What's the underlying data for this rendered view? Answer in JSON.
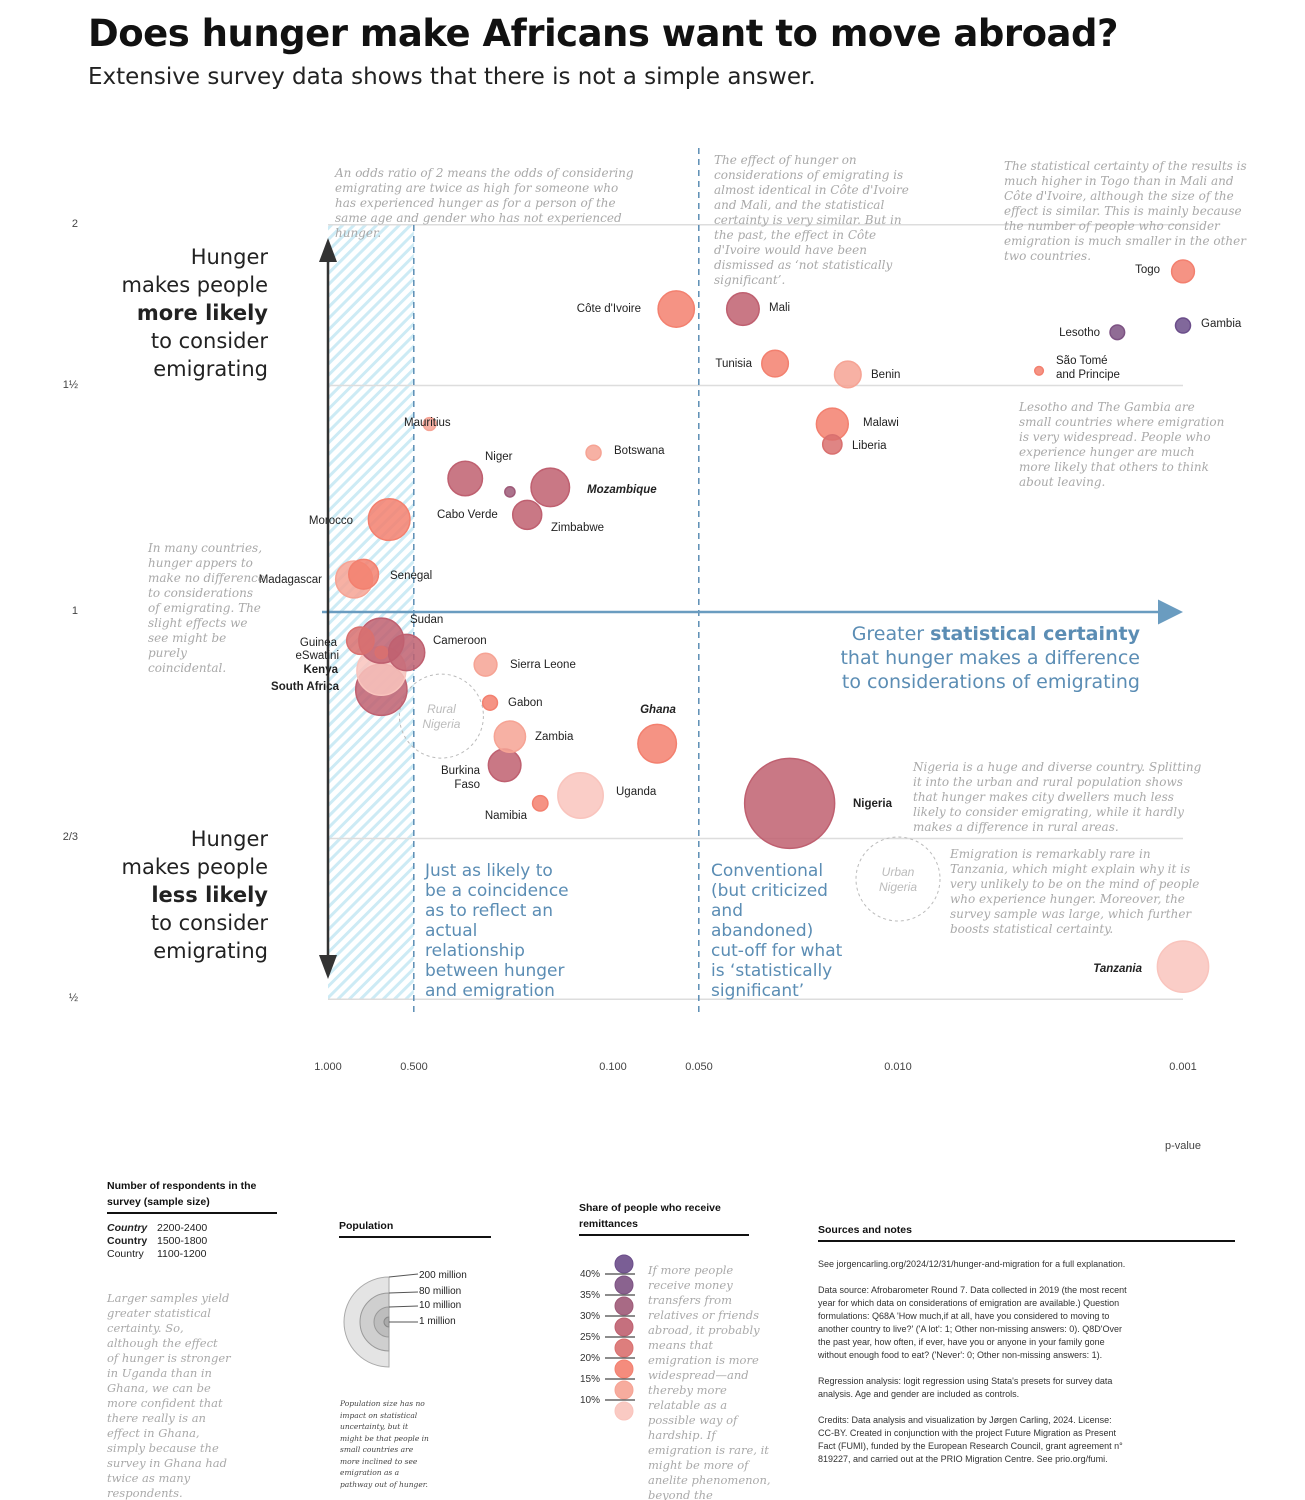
{
  "title": "Does hunger make Africans want to move abroad?",
  "subtitle": "Extensive survey data shows that there is not a simple answer.",
  "chart_data": {
    "type": "scatter",
    "xlabel": "p-value",
    "x_scale": "log",
    "x_reversed": true,
    "xlim": [
      1.0,
      0.001
    ],
    "x_ticks": [
      "1.000",
      "0.500",
      "0.100",
      "0.050",
      "0.010",
      "0.001"
    ],
    "y_scale": "log",
    "ylim": [
      0.5,
      2
    ],
    "y_ticks": [
      "2",
      "1½",
      "1",
      "2/3",
      "½"
    ],
    "size_variable": "Population (million)",
    "color_variable": "Share of people who receive remittances (%)",
    "color_scale": [
      "#f9c4bd",
      "#f6a394",
      "#f3806f",
      "#d9706f",
      "#bf6070",
      "#9e5a78",
      "#7d5283",
      "#6b4d8a"
    ],
    "points": [
      {
        "country": "Togo",
        "p": 0.001,
        "odds_ratio": 1.84,
        "population": 8,
        "remittances": 18,
        "style": "normal"
      },
      {
        "country": "Gambia",
        "p": 0.001,
        "odds_ratio": 1.67,
        "population": 2.3,
        "remittances": 42,
        "style": "normal"
      },
      {
        "country": "Lesotho",
        "p": 0.0017,
        "odds_ratio": 1.65,
        "population": 2.1,
        "remittances": 37,
        "style": "normal"
      },
      {
        "country": "São Tomé and Principe",
        "p": 0.0032,
        "odds_ratio": 1.54,
        "population": 0.2,
        "remittances": 17,
        "style": "normal"
      },
      {
        "country": "Côte d'Ivoire",
        "p": 0.06,
        "odds_ratio": 1.72,
        "population": 26,
        "remittances": 17,
        "style": "normal"
      },
      {
        "country": "Mali",
        "p": 0.035,
        "odds_ratio": 1.72,
        "population": 20,
        "remittances": 28,
        "style": "normal"
      },
      {
        "country": "Tunisia",
        "p": 0.027,
        "odds_ratio": 1.56,
        "population": 12,
        "remittances": 17,
        "style": "normal"
      },
      {
        "country": "Benin",
        "p": 0.015,
        "odds_ratio": 1.53,
        "population": 12,
        "remittances": 12,
        "style": "normal"
      },
      {
        "country": "Malawi",
        "p": 0.017,
        "odds_ratio": 1.4,
        "population": 19,
        "remittances": 18,
        "style": "normal"
      },
      {
        "country": "Liberia",
        "p": 0.017,
        "odds_ratio": 1.35,
        "population": 5,
        "remittances": 24,
        "style": "normal"
      },
      {
        "country": "Mauritius",
        "p": 0.44,
        "odds_ratio": 1.4,
        "population": 1.3,
        "remittances": 12,
        "style": "normal"
      },
      {
        "country": "Botswana",
        "p": 0.117,
        "odds_ratio": 1.33,
        "population": 2.3,
        "remittances": 12,
        "style": "normal"
      },
      {
        "country": "Niger",
        "p": 0.33,
        "odds_ratio": 1.27,
        "population": 23,
        "remittances": 27,
        "style": "normal"
      },
      {
        "country": "Cabo Verde",
        "p": 0.23,
        "odds_ratio": 1.24,
        "population": 0.5,
        "remittances": 33,
        "style": "normal"
      },
      {
        "country": "Mozambique",
        "p": 0.166,
        "odds_ratio": 1.25,
        "population": 30,
        "remittances": 27,
        "style": "bold-italic"
      },
      {
        "country": "Zimbabwe",
        "p": 0.2,
        "odds_ratio": 1.19,
        "population": 15,
        "remittances": 27,
        "style": "normal"
      },
      {
        "country": "Morocco",
        "p": 0.61,
        "odds_ratio": 1.18,
        "population": 36,
        "remittances": 20,
        "style": "normal"
      },
      {
        "country": "Senegal",
        "p": 0.75,
        "odds_ratio": 1.07,
        "population": 16,
        "remittances": 17,
        "style": "normal"
      },
      {
        "country": "Madagascar",
        "p": 0.81,
        "odds_ratio": 1.06,
        "population": 27,
        "remittances": 12,
        "style": "normal"
      },
      {
        "country": "Sudan",
        "p": 0.65,
        "odds_ratio": 0.95,
        "population": 43,
        "remittances": 27,
        "style": "normal"
      },
      {
        "country": "Cameroon",
        "p": 0.53,
        "odds_ratio": 0.93,
        "population": 26,
        "remittances": 26,
        "style": "normal"
      },
      {
        "country": "Guinea",
        "p": 0.77,
        "odds_ratio": 0.95,
        "population": 13,
        "remittances": 21,
        "style": "normal"
      },
      {
        "country": "eSwatini",
        "p": 0.65,
        "odds_ratio": 0.93,
        "population": 1.1,
        "remittances": 22,
        "style": "normal"
      },
      {
        "country": "Kenya",
        "p": 0.65,
        "odds_ratio": 0.9,
        "population": 52,
        "remittances": 10,
        "style": "bold"
      },
      {
        "country": "South Africa",
        "p": 0.65,
        "odds_ratio": 0.87,
        "population": 58,
        "remittances": 27,
        "style": "bold"
      },
      {
        "country": "Sierra Leone",
        "p": 0.28,
        "odds_ratio": 0.91,
        "population": 8,
        "remittances": 13,
        "style": "normal"
      },
      {
        "country": "Gabon",
        "p": 0.27,
        "odds_ratio": 0.85,
        "population": 2.2,
        "remittances": 18,
        "style": "normal"
      },
      {
        "country": "Zambia",
        "p": 0.23,
        "odds_ratio": 0.8,
        "population": 18,
        "remittances": 12,
        "style": "normal"
      },
      {
        "country": "Burkina Faso",
        "p": 0.24,
        "odds_ratio": 0.76,
        "population": 20,
        "remittances": 25,
        "style": "normal"
      },
      {
        "country": "Namibia",
        "p": 0.18,
        "odds_ratio": 0.71,
        "population": 2.5,
        "remittances": 18,
        "style": "normal"
      },
      {
        "country": "Uganda",
        "p": 0.13,
        "odds_ratio": 0.72,
        "population": 44,
        "remittances": 10,
        "style": "normal"
      },
      {
        "country": "Ghana",
        "p": 0.07,
        "odds_ratio": 0.79,
        "population": 30,
        "remittances": 18,
        "style": "bold-italic"
      },
      {
        "country": "Nigeria",
        "p": 0.024,
        "odds_ratio": 0.71,
        "population": 200,
        "remittances": 26,
        "style": "bold"
      },
      {
        "country": "Tanzania",
        "p": 0.001,
        "odds_ratio": 0.53,
        "population": 58,
        "remittances": 8,
        "style": "bold-italic"
      }
    ],
    "subgroups": [
      {
        "label": "Rural Nigeria",
        "p": 0.4,
        "odds_ratio": 0.83
      },
      {
        "label": "Urban Nigeria",
        "p": 0.01,
        "odds_ratio": 0.62
      }
    ],
    "reference_lines": [
      0.5,
      0.05
    ]
  },
  "axis_labels": {
    "up": [
      "Hunger",
      "makes people",
      "more likely",
      "to consider",
      "emigrating"
    ],
    "down": [
      "Hunger",
      "makes people",
      "less likely",
      "to consider",
      "emigrating"
    ],
    "right_pre": "Greater ",
    "right_bold": "statistical certainty",
    "right_rest": "that hunger makes a difference to considerations of emigrating"
  },
  "zones": {
    "coincidence": "Just as likely to be a coincidence as to reflect an actual relationship between hunger and emigration",
    "conventional": "Conventional (but criticized and abandoned) cut-off for what is ‘statistically significant’"
  },
  "annotations": {
    "odds": "An odds ratio of 2 means the odds of considering emigrating are twice as high for someone who has experienced hunger as for a person of the same age and gender who has not experienced hunger.",
    "civ_mali": "The effect of hunger on considerations of emigrating is almost identical in Côte d'Ivoire and Mali, and the statistical certainty is very similar. But in the past, the effect in Côte d'Ivoire would have been dismissed as ‘not statistically significant’.",
    "togo": "The statistical certainty of the results is much higher in Togo than in Mali and Côte d'Ivoire, although the size of the effect is similar. This is mainly because the number of people who consider emigration is much smaller in the other two countries.",
    "lesotho": "Lesotho and The Gambia are small countries where emigration is very widespread. People who experience hunger are much more likely that others to think about leaving.",
    "many": "In many countries, hunger appers to make no difference to considerations of emigrating. The slight effects we see might be purely coincidental.",
    "nigeria": "Nigeria is a huge and diverse country. Splitting it into the urban and rural population shows that hunger makes city dwellers much less likely to consider emigrating, while it hardly makes a difference in rural areas.",
    "tanzania": "Emigration is remarkably rare in Tanzania, which might explain why it is very unlikely to be on the mind of people who experience hunger. Moreover, the survey sample was large, which further boosts statistical certainty."
  },
  "legend": {
    "sample": {
      "title": "Number of respondents in the survey (sample size)",
      "rows": [
        {
          "label": "Country",
          "range": "2200-2400",
          "weight": "bold"
        },
        {
          "label": "Country",
          "range": "1500-1800",
          "weight": "semibold"
        },
        {
          "label": "Country",
          "range": "1100-1200",
          "weight": "normal"
        }
      ],
      "note": "Larger samples yield greater statistical certainty. So, although the effect of hunger is stronger in Uganda than in Ghana, we can be more confident that there really is an effect in Ghana, simply because the survey in Ghana had twice as many respondents."
    },
    "population": {
      "title": "Population",
      "items": [
        "200 million",
        "80 million",
        "10 million",
        "1 million"
      ],
      "note": "Population size has no impact on statistical uncertainty, but it might be that people in small countries are more inclined to see emigration as a pathway out of hunger."
    },
    "remittances": {
      "title": "Share of people who receive remittances",
      "ticks": [
        "40%",
        "35%",
        "30%",
        "25%",
        "20%",
        "15%",
        "10%"
      ],
      "note": "If more people receive money transfers from relatives or friends abroad, it probably means that emigration is more widespread—and thereby more relatable as a possible way of hardship. If emigration is rare, it might be more of anelite phenomenon, beyond the imagination of those who experience hunger."
    },
    "sources": {
      "title": "Sources and notes",
      "paragraphs": [
        "See jorgencarling.org/2024/12/31/hunger-and-migration for a full explanation.",
        "Data source: Afrobarometer Round 7. Data collected in 2019 (the most recent year for which data on considerations of emigration are available.) Question formulations: Q68A 'How much,if at all, have you considered to moving to another country to live?' ('A lot': 1; Other non-missing answers: 0). Q8D'Over the past year, how often, if ever, have you or anyone in your family gone without enough food to eat? ('Never': 0; Other non-missing answers: 1).",
        "Regression analysis: logit regression using Stata's presets for survey data analysis. Age and gender are included as controls.",
        "Credits: Data analysis and visualization by Jørgen Carling, 2024. License: CC-BY. Created in conjunction with the project Future Migration as Present Fact (FUMI), funded by the European Research Council, grant agreement n° 819227, and carried out at the PRIO Migration Centre. See prio.org/fumi."
      ]
    }
  }
}
